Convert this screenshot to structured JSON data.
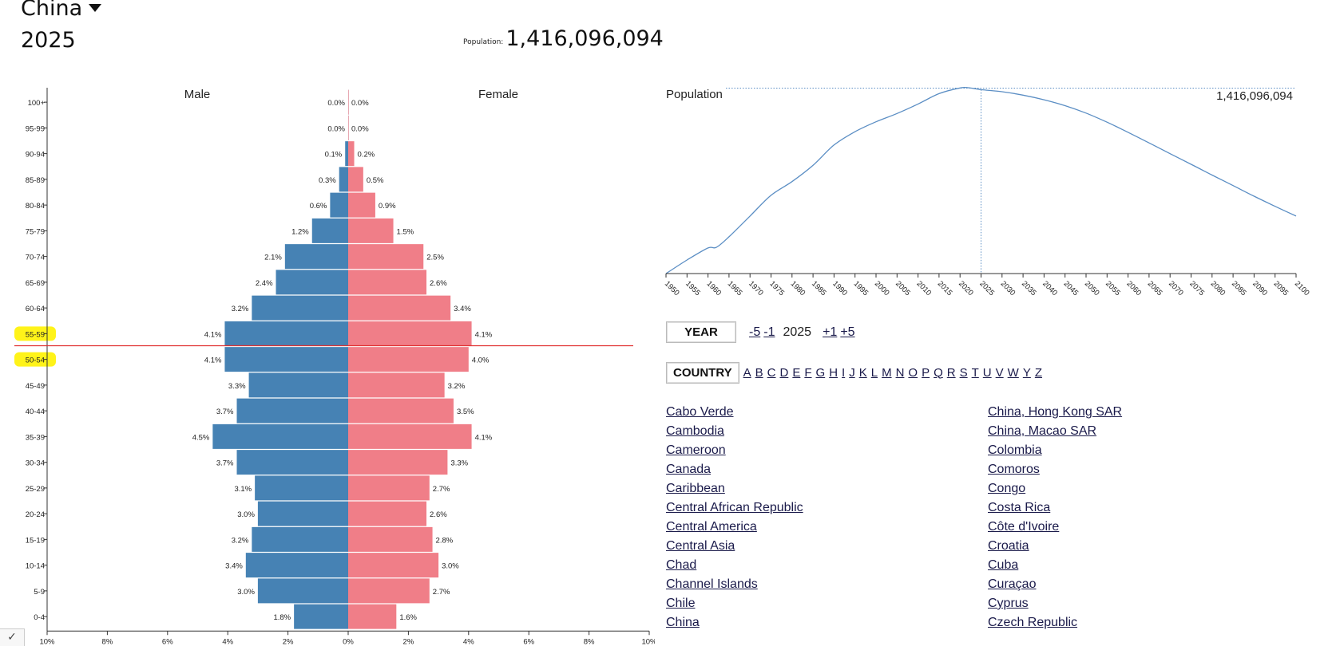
{
  "header": {
    "country": "China",
    "year": "2025",
    "population_label": "Population:",
    "population_value": "1,416,096,094"
  },
  "colors": {
    "male": "#4682b4",
    "female": "#f07e88",
    "line": "#5b8ec4",
    "highlight": "#fff200",
    "marker_line": "#e03030",
    "axis": "#333333"
  },
  "chart_data": [
    {
      "type": "bar",
      "subtype": "population-pyramid",
      "title": "",
      "series": [
        {
          "name": "Male",
          "values": [
            0.0,
            0.0,
            0.1,
            0.3,
            0.6,
            1.2,
            2.1,
            2.4,
            3.2,
            4.1,
            4.1,
            3.3,
            3.7,
            4.5,
            3.7,
            3.1,
            3.0,
            3.2,
            3.4,
            3.0,
            1.8
          ]
        },
        {
          "name": "Female",
          "values": [
            0.0,
            0.0,
            0.2,
            0.5,
            0.9,
            1.5,
            2.5,
            2.6,
            3.4,
            4.1,
            4.0,
            3.2,
            3.5,
            4.1,
            3.3,
            2.7,
            2.6,
            2.8,
            3.0,
            2.7,
            1.6
          ]
        }
      ],
      "value_labels": {
        "male": [
          "0.0%",
          "0.0%",
          "0.1%",
          "0.3%",
          "0.6%",
          "1.2%",
          "2.1%",
          "2.4%",
          "3.2%",
          "4.1%",
          "4.1%",
          "3.3%",
          "3.7%",
          "4.5%",
          "3.7%",
          "3.1%",
          "3.0%",
          "3.2%",
          "3.4%",
          "3.0%",
          "1.8%"
        ],
        "female": [
          "0.0%",
          "0.0%",
          "0.2%",
          "0.5%",
          "0.9%",
          "1.5%",
          "2.5%",
          "2.6%",
          "3.4%",
          "4.1%",
          "4.0%",
          "3.2%",
          "3.5%",
          "4.1%",
          "3.3%",
          "2.7%",
          "2.6%",
          "2.8%",
          "3.0%",
          "2.7%",
          "1.6%"
        ]
      },
      "categories": [
        "100+",
        "95-99",
        "90-94",
        "85-89",
        "80-84",
        "75-79",
        "70-74",
        "65-69",
        "60-64",
        "55-59",
        "50-54",
        "45-49",
        "40-44",
        "35-39",
        "30-34",
        "25-29",
        "20-24",
        "15-19",
        "10-14",
        "5-9",
        "0-4"
      ],
      "xlim": [
        -10,
        10
      ],
      "x_ticks": [
        "10%",
        "8%",
        "6%",
        "4%",
        "2%",
        "0%",
        "2%",
        "4%",
        "6%",
        "8%",
        "10%"
      ],
      "highlighted_categories": [
        "55-59",
        "50-54"
      ],
      "grid": false
    },
    {
      "type": "line",
      "title": "",
      "series_label": "Population",
      "current_value_label": "1,416,096,094",
      "current_year": 2025,
      "x": [
        1950,
        1955,
        1960,
        1962,
        1965,
        1970,
        1975,
        1980,
        1985,
        1990,
        1995,
        2000,
        2005,
        2010,
        2015,
        2020,
        2022,
        2025,
        2030,
        2035,
        2040,
        2045,
        2050,
        2055,
        2060,
        2065,
        2070,
        2075,
        2080,
        2085,
        2090,
        2095,
        2100
      ],
      "y": [
        546,
        610,
        667,
        670,
        720,
        818,
        916,
        981,
        1058,
        1154,
        1217,
        1264,
        1303,
        1348,
        1397,
        1424,
        1425,
        1416,
        1406,
        1390,
        1368,
        1340,
        1305,
        1262,
        1214,
        1164,
        1113,
        1063,
        1012,
        962,
        912,
        864,
        818
      ],
      "y_unit": "millions",
      "x_ticks": [
        "1950",
        "1955",
        "1960",
        "1965",
        "1970",
        "1975",
        "1980",
        "1985",
        "1990",
        "1995",
        "2000",
        "2005",
        "2010",
        "2015",
        "2020",
        "2025",
        "2030",
        "2035",
        "2040",
        "2045",
        "2050",
        "2055",
        "2060",
        "2065",
        "2070",
        "2075",
        "2080",
        "2085",
        "2090",
        "2095",
        "2100"
      ],
      "xlim": [
        1950,
        2100
      ],
      "ylim": [
        546,
        1425
      ],
      "grid": false
    }
  ],
  "controls": {
    "year_label": "YEAR",
    "year_steps": [
      "-5",
      "-1",
      "+1",
      "+5"
    ],
    "current_year": "2025",
    "country_label": "COUNTRY",
    "letters": [
      "A",
      "B",
      "C",
      "D",
      "E",
      "F",
      "G",
      "H",
      "I",
      "J",
      "K",
      "L",
      "M",
      "N",
      "O",
      "P",
      "Q",
      "R",
      "S",
      "T",
      "U",
      "V",
      "W",
      "Y",
      "Z"
    ]
  },
  "countries": {
    "col1": [
      "Cabo Verde",
      "Cambodia",
      "Cameroon",
      "Canada",
      "Caribbean",
      "Central African Republic",
      "Central America",
      "Central Asia",
      "Chad",
      "Channel Islands",
      "Chile",
      "China"
    ],
    "col2": [
      "China, Hong Kong SAR",
      "China, Macao SAR",
      "Colombia",
      "Comoros",
      "Congo",
      "Costa Rica",
      "Côte d'Ivoire",
      "Croatia",
      "Cuba",
      "Curaçao",
      "Cyprus",
      "Czech Republic"
    ]
  },
  "misc": {
    "corner_check": "✓"
  }
}
